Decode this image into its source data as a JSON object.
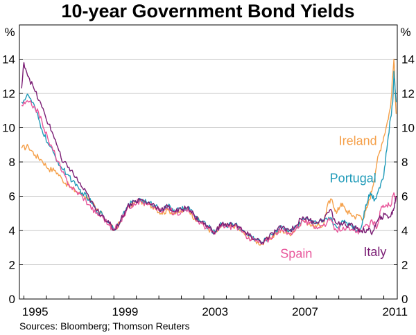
{
  "chart_data": {
    "type": "line",
    "title": "10-year Government Bond Yields",
    "ylabel_left": "%",
    "ylabel_right": "%",
    "ylim": [
      0,
      16
    ],
    "y_ticks": [
      0,
      2,
      4,
      6,
      8,
      10,
      12,
      14
    ],
    "xlim": [
      1994.8,
      2011.6
    ],
    "x_ticks": [
      {
        "value": 1995,
        "label": "1995"
      },
      {
        "value": 1999,
        "label": "1999"
      },
      {
        "value": 2003,
        "label": "2003"
      },
      {
        "value": 2007,
        "label": "2007"
      },
      {
        "value": 2011,
        "label": "2011"
      }
    ],
    "grid": true,
    "source": "Sources: Bloomberg; Thomson Reuters",
    "series": [
      {
        "name": "Ireland",
        "color": "#f5a04a",
        "points": [
          [
            1994.9,
            8.8
          ],
          [
            1995.2,
            8.9
          ],
          [
            1995.5,
            8.4
          ],
          [
            1995.8,
            8.1
          ],
          [
            1996.1,
            7.6
          ],
          [
            1996.4,
            7.5
          ],
          [
            1996.7,
            7.0
          ],
          [
            1997.0,
            6.6
          ],
          [
            1997.3,
            6.3
          ],
          [
            1997.6,
            6.1
          ],
          [
            1997.9,
            5.9
          ],
          [
            1998.2,
            5.2
          ],
          [
            1998.5,
            4.9
          ],
          [
            1998.8,
            4.4
          ],
          [
            1999.0,
            4.0
          ],
          [
            1999.3,
            4.5
          ],
          [
            1999.6,
            5.3
          ],
          [
            1999.9,
            5.6
          ],
          [
            2000.2,
            5.7
          ],
          [
            2000.5,
            5.5
          ],
          [
            2000.8,
            5.4
          ],
          [
            2001.1,
            5.0
          ],
          [
            2001.4,
            5.2
          ],
          [
            2001.7,
            5.0
          ],
          [
            2002.0,
            5.1
          ],
          [
            2002.3,
            5.3
          ],
          [
            2002.6,
            4.7
          ],
          [
            2002.9,
            4.5
          ],
          [
            2003.2,
            4.1
          ],
          [
            2003.5,
            3.8
          ],
          [
            2003.8,
            4.3
          ],
          [
            2004.1,
            4.2
          ],
          [
            2004.4,
            4.3
          ],
          [
            2004.7,
            3.9
          ],
          [
            2005.0,
            3.6
          ],
          [
            2005.3,
            3.4
          ],
          [
            2005.6,
            3.2
          ],
          [
            2005.9,
            3.5
          ],
          [
            2006.2,
            3.8
          ],
          [
            2006.5,
            4.0
          ],
          [
            2006.8,
            3.8
          ],
          [
            2007.1,
            4.1
          ],
          [
            2007.4,
            4.6
          ],
          [
            2007.7,
            4.4
          ],
          [
            2008.0,
            4.2
          ],
          [
            2008.3,
            4.3
          ],
          [
            2008.5,
            5.5
          ],
          [
            2008.7,
            5.8
          ],
          [
            2008.9,
            5.0
          ],
          [
            2009.1,
            5.6
          ],
          [
            2009.3,
            5.2
          ],
          [
            2009.5,
            5.0
          ],
          [
            2009.7,
            4.8
          ],
          [
            2009.9,
            4.9
          ],
          [
            2010.1,
            4.7
          ],
          [
            2010.3,
            5.5
          ],
          [
            2010.5,
            6.5
          ],
          [
            2010.7,
            8.0
          ],
          [
            2010.9,
            9.0
          ],
          [
            2011.1,
            10.0
          ],
          [
            2011.3,
            11.2
          ],
          [
            2011.45,
            14.0
          ],
          [
            2011.55,
            10.8
          ]
        ]
      },
      {
        "name": "Portugal",
        "color": "#1e9ab8",
        "points": [
          [
            1994.9,
            11.5
          ],
          [
            1995.2,
            11.9
          ],
          [
            1995.5,
            11.1
          ],
          [
            1995.8,
            9.9
          ],
          [
            1996.1,
            9.0
          ],
          [
            1996.4,
            8.3
          ],
          [
            1996.7,
            7.6
          ],
          [
            1997.0,
            7.2
          ],
          [
            1997.3,
            6.6
          ],
          [
            1997.6,
            6.2
          ],
          [
            1997.9,
            5.8
          ],
          [
            1998.2,
            5.2
          ],
          [
            1998.5,
            4.9
          ],
          [
            1998.8,
            4.4
          ],
          [
            1999.0,
            4.1
          ],
          [
            1999.3,
            4.6
          ],
          [
            1999.6,
            5.4
          ],
          [
            1999.9,
            5.7
          ],
          [
            2000.2,
            5.8
          ],
          [
            2000.5,
            5.6
          ],
          [
            2000.8,
            5.5
          ],
          [
            2001.1,
            5.2
          ],
          [
            2001.4,
            5.4
          ],
          [
            2001.7,
            5.2
          ],
          [
            2002.0,
            5.2
          ],
          [
            2002.3,
            5.4
          ],
          [
            2002.6,
            4.8
          ],
          [
            2002.9,
            4.5
          ],
          [
            2003.2,
            4.2
          ],
          [
            2003.5,
            3.9
          ],
          [
            2003.8,
            4.4
          ],
          [
            2004.1,
            4.3
          ],
          [
            2004.4,
            4.4
          ],
          [
            2004.7,
            4.0
          ],
          [
            2005.0,
            3.7
          ],
          [
            2005.3,
            3.5
          ],
          [
            2005.6,
            3.3
          ],
          [
            2005.9,
            3.6
          ],
          [
            2006.2,
            4.0
          ],
          [
            2006.5,
            4.2
          ],
          [
            2006.8,
            4.0
          ],
          [
            2007.1,
            4.2
          ],
          [
            2007.4,
            4.7
          ],
          [
            2007.7,
            4.6
          ],
          [
            2008.0,
            4.4
          ],
          [
            2008.3,
            4.5
          ],
          [
            2008.6,
            4.7
          ],
          [
            2008.9,
            4.2
          ],
          [
            2009.2,
            4.5
          ],
          [
            2009.5,
            4.4
          ],
          [
            2009.8,
            4.0
          ],
          [
            2010.0,
            4.2
          ],
          [
            2010.2,
            5.5
          ],
          [
            2010.4,
            6.2
          ],
          [
            2010.6,
            5.8
          ],
          [
            2010.8,
            6.5
          ],
          [
            2011.0,
            7.2
          ],
          [
            2011.2,
            9.5
          ],
          [
            2011.4,
            11.5
          ],
          [
            2011.45,
            13.3
          ],
          [
            2011.55,
            11.5
          ]
        ]
      },
      {
        "name": "Spain",
        "color": "#e8559a",
        "points": [
          [
            1994.9,
            11.3
          ],
          [
            1995.2,
            11.5
          ],
          [
            1995.5,
            11.2
          ],
          [
            1995.8,
            10.4
          ],
          [
            1996.1,
            9.2
          ],
          [
            1996.4,
            8.4
          ],
          [
            1996.7,
            7.4
          ],
          [
            1997.0,
            6.7
          ],
          [
            1997.3,
            6.3
          ],
          [
            1997.6,
            6.0
          ],
          [
            1997.9,
            5.5
          ],
          [
            1998.2,
            5.0
          ],
          [
            1998.5,
            4.8
          ],
          [
            1998.8,
            4.3
          ],
          [
            1999.0,
            4.0
          ],
          [
            1999.3,
            4.5
          ],
          [
            1999.6,
            5.3
          ],
          [
            1999.9,
            5.6
          ],
          [
            2000.2,
            5.7
          ],
          [
            2000.5,
            5.5
          ],
          [
            2000.8,
            5.4
          ],
          [
            2001.1,
            5.1
          ],
          [
            2001.4,
            5.3
          ],
          [
            2001.7,
            5.0
          ],
          [
            2002.0,
            5.1
          ],
          [
            2002.3,
            5.3
          ],
          [
            2002.6,
            4.7
          ],
          [
            2002.9,
            4.4
          ],
          [
            2003.2,
            4.1
          ],
          [
            2003.5,
            3.8
          ],
          [
            2003.8,
            4.3
          ],
          [
            2004.1,
            4.2
          ],
          [
            2004.4,
            4.3
          ],
          [
            2004.7,
            3.9
          ],
          [
            2005.0,
            3.6
          ],
          [
            2005.3,
            3.4
          ],
          [
            2005.6,
            3.2
          ],
          [
            2005.9,
            3.5
          ],
          [
            2006.2,
            3.9
          ],
          [
            2006.5,
            4.0
          ],
          [
            2006.8,
            3.8
          ],
          [
            2007.1,
            4.1
          ],
          [
            2007.4,
            4.6
          ],
          [
            2007.7,
            4.4
          ],
          [
            2008.0,
            4.2
          ],
          [
            2008.3,
            4.3
          ],
          [
            2008.6,
            4.6
          ],
          [
            2008.9,
            4.0
          ],
          [
            2009.2,
            4.2
          ],
          [
            2009.5,
            4.0
          ],
          [
            2009.8,
            3.9
          ],
          [
            2010.0,
            4.0
          ],
          [
            2010.3,
            4.3
          ],
          [
            2010.5,
            4.5
          ],
          [
            2010.7,
            4.2
          ],
          [
            2010.9,
            5.4
          ],
          [
            2011.1,
            5.5
          ],
          [
            2011.3,
            5.4
          ],
          [
            2011.45,
            6.2
          ],
          [
            2011.55,
            5.7
          ]
        ]
      },
      {
        "name": "Italy",
        "color": "#7a1d74",
        "points": [
          [
            1994.9,
            12.3
          ],
          [
            1995.0,
            13.8
          ],
          [
            1995.2,
            13.0
          ],
          [
            1995.5,
            12.1
          ],
          [
            1995.8,
            11.2
          ],
          [
            1996.1,
            10.2
          ],
          [
            1996.4,
            9.3
          ],
          [
            1996.7,
            8.0
          ],
          [
            1997.0,
            7.7
          ],
          [
            1997.3,
            7.1
          ],
          [
            1997.6,
            6.5
          ],
          [
            1997.9,
            5.9
          ],
          [
            1998.2,
            5.2
          ],
          [
            1998.5,
            4.9
          ],
          [
            1998.8,
            4.4
          ],
          [
            1999.0,
            4.0
          ],
          [
            1999.3,
            4.6
          ],
          [
            1999.6,
            5.4
          ],
          [
            1999.9,
            5.7
          ],
          [
            2000.2,
            5.8
          ],
          [
            2000.5,
            5.6
          ],
          [
            2000.8,
            5.5
          ],
          [
            2001.1,
            5.2
          ],
          [
            2001.4,
            5.4
          ],
          [
            2001.7,
            5.1
          ],
          [
            2002.0,
            5.2
          ],
          [
            2002.3,
            5.4
          ],
          [
            2002.6,
            4.8
          ],
          [
            2002.9,
            4.5
          ],
          [
            2003.2,
            4.2
          ],
          [
            2003.5,
            3.9
          ],
          [
            2003.8,
            4.4
          ],
          [
            2004.1,
            4.3
          ],
          [
            2004.4,
            4.4
          ],
          [
            2004.7,
            4.0
          ],
          [
            2005.0,
            3.7
          ],
          [
            2005.3,
            3.5
          ],
          [
            2005.6,
            3.3
          ],
          [
            2005.9,
            3.6
          ],
          [
            2006.2,
            4.0
          ],
          [
            2006.5,
            4.2
          ],
          [
            2006.8,
            4.0
          ],
          [
            2007.1,
            4.3
          ],
          [
            2007.4,
            4.8
          ],
          [
            2007.7,
            4.6
          ],
          [
            2008.0,
            4.5
          ],
          [
            2008.3,
            4.6
          ],
          [
            2008.6,
            5.2
          ],
          [
            2008.9,
            4.4
          ],
          [
            2009.2,
            4.4
          ],
          [
            2009.5,
            4.3
          ],
          [
            2009.8,
            4.1
          ],
          [
            2010.0,
            4.0
          ],
          [
            2010.3,
            4.0
          ],
          [
            2010.5,
            3.9
          ],
          [
            2010.7,
            4.5
          ],
          [
            2010.9,
            4.8
          ],
          [
            2011.1,
            4.9
          ],
          [
            2011.3,
            4.8
          ],
          [
            2011.45,
            5.3
          ],
          [
            2011.55,
            6.0
          ]
        ]
      }
    ],
    "annotations": [
      {
        "series": "Ireland",
        "text": "Ireland",
        "x": 2009.0,
        "y": 9.0
      },
      {
        "series": "Portugal",
        "text": "Portugal",
        "x": 2008.6,
        "y": 6.8
      },
      {
        "series": "Spain",
        "text": "Spain",
        "x": 2006.4,
        "y": 2.4
      },
      {
        "series": "Italy",
        "text": "Italy",
        "x": 2010.1,
        "y": 2.5
      }
    ]
  }
}
